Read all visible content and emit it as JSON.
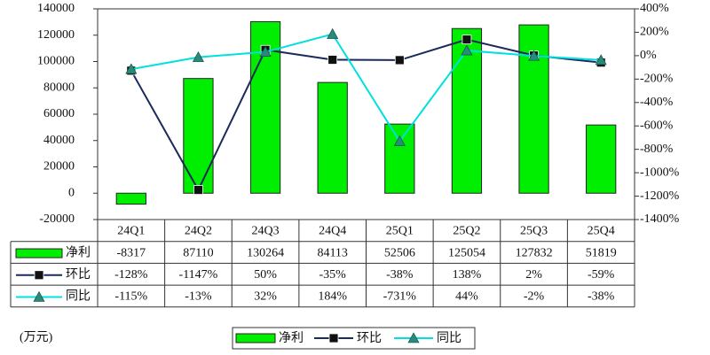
{
  "chart_data": {
    "type": "combo",
    "unit": "(万元)",
    "categories": [
      "24Q1",
      "24Q2",
      "24Q3",
      "24Q4",
      "25Q1",
      "25Q2",
      "25Q3",
      "25Q4"
    ],
    "series": [
      {
        "name": "净利",
        "type": "bar",
        "color": "#00ee00",
        "values": [
          -8317,
          87110,
          130264,
          84113,
          52506,
          125054,
          127832,
          51819
        ]
      },
      {
        "name": "环比",
        "type": "line",
        "axis": "y2",
        "color": "#1a2a5a",
        "marker": "square",
        "marker_color": "#111111",
        "values": [
          -128,
          -1147,
          50,
          -35,
          -38,
          138,
          2,
          -59
        ],
        "value_labels": [
          "-128%",
          "-1147%",
          "50%",
          "-35%",
          "-38%",
          "138%",
          "2%",
          "-59%"
        ]
      },
      {
        "name": "同比",
        "type": "line",
        "axis": "y2",
        "color": "#00e0e0",
        "marker": "triangle",
        "marker_color": "#2a8a7a",
        "values": [
          -115,
          -13,
          32,
          184,
          -731,
          44,
          -2,
          -38
        ],
        "value_labels": [
          "-115%",
          "-13%",
          "32%",
          "184%",
          "-731%",
          "44%",
          "-2%",
          "-38%"
        ]
      }
    ],
    "ylim": [
      -20000,
      140000
    ],
    "yticks": [
      -20000,
      0,
      20000,
      40000,
      60000,
      80000,
      100000,
      120000,
      140000
    ],
    "y2lim": [
      -1400,
      400
    ],
    "y2ticks": [
      {
        "value": -1400,
        "label": "-1400%"
      },
      {
        "value": -1200,
        "label": "-1200%"
      },
      {
        "value": -1000,
        "label": "-1000%"
      },
      {
        "value": -800,
        "label": "-800%"
      },
      {
        "value": -600,
        "label": "-600%"
      },
      {
        "value": -400,
        "label": "-400%"
      },
      {
        "value": -200,
        "label": "-200%"
      },
      {
        "value": 0,
        "label": "0%"
      },
      {
        "value": 200,
        "label": "200%"
      },
      {
        "value": 400,
        "label": "400%"
      }
    ]
  }
}
